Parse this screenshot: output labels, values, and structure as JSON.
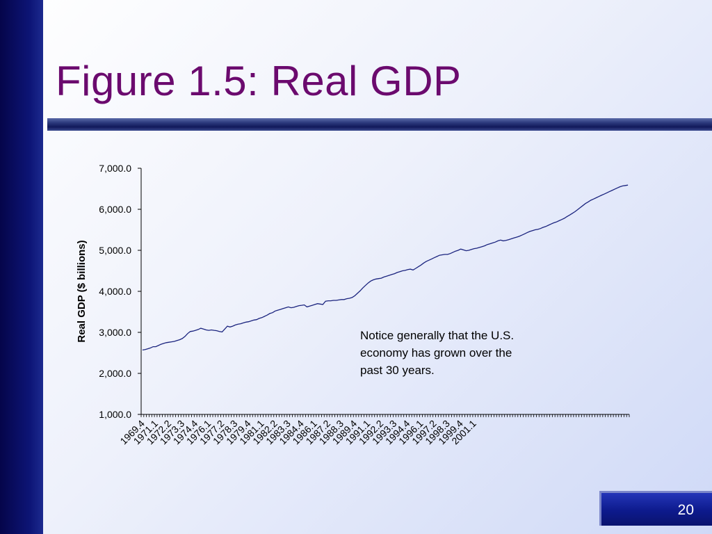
{
  "slide": {
    "title": "Figure 1.5:  Real GDP",
    "annotation": "Notice generally that the U.S. economy has grown over the past 30 years.",
    "page_number": "20"
  },
  "colors": {
    "title": "#6b0a6e",
    "line": "#1a237e",
    "left_bar": "#05054a",
    "page_box": "#0d1a8c"
  },
  "chart_data": {
    "type": "line",
    "title": "",
    "xlabel": "",
    "ylabel": "Real GDP ($ billions)",
    "ylim": [
      1000,
      7000
    ],
    "yticks": [
      1000,
      2000,
      3000,
      4000,
      5000,
      6000,
      7000
    ],
    "ytick_labels": [
      "1,000.0",
      "2,000.0",
      "3,000.0",
      "4,000.0",
      "5,000.0",
      "6,000.0",
      "7,000.0"
    ],
    "xtick_labels": [
      "1969.4",
      "1971.1",
      "1972.2",
      "1973.3",
      "1974.4",
      "1976.1",
      "1977.2",
      "1978.3",
      "1979.4",
      "1981.1",
      "1982.2",
      "1983.3",
      "1984.4",
      "1986.1",
      "1987.2",
      "1988.3",
      "1989.4",
      "1991.1",
      "1992.2",
      "1993.3",
      "1994.4",
      "1996.1",
      "1997.2",
      "1998.3",
      "1999.4",
      "2001.1"
    ],
    "x_start": "1969.4",
    "grid": false,
    "legend": "none",
    "series": [
      {
        "values": [
          2570,
          2580,
          2600,
          2620,
          2650,
          2650,
          2680,
          2710,
          2730,
          2750,
          2760,
          2770,
          2780,
          2800,
          2820,
          2850,
          2900,
          2970,
          3020,
          3030,
          3050,
          3070,
          3100,
          3080,
          3060,
          3050,
          3060,
          3050,
          3040,
          3020,
          3010,
          3080,
          3150,
          3130,
          3150,
          3180,
          3200,
          3210,
          3230,
          3250,
          3260,
          3280,
          3300,
          3310,
          3340,
          3360,
          3390,
          3420,
          3460,
          3480,
          3520,
          3540,
          3560,
          3580,
          3600,
          3620,
          3600,
          3610,
          3630,
          3650,
          3660,
          3670,
          3620,
          3640,
          3660,
          3680,
          3700,
          3690,
          3680,
          3760,
          3770,
          3770,
          3780,
          3780,
          3790,
          3800,
          3800,
          3820,
          3830,
          3850,
          3890,
          3950,
          4010,
          4080,
          4140,
          4200,
          4250,
          4280,
          4300,
          4310,
          4320,
          4350,
          4370,
          4390,
          4410,
          4430,
          4460,
          4480,
          4500,
          4510,
          4530,
          4540,
          4520,
          4560,
          4600,
          4640,
          4690,
          4730,
          4760,
          4790,
          4820,
          4850,
          4880,
          4890,
          4900,
          4900,
          4920,
          4950,
          4980,
          5000,
          5030,
          5010,
          4990,
          5000,
          5020,
          5040,
          5050,
          5070,
          5090,
          5110,
          5140,
          5160,
          5180,
          5200,
          5230,
          5250,
          5230,
          5240,
          5260,
          5280,
          5300,
          5320,
          5340,
          5370,
          5400,
          5430,
          5460,
          5480,
          5500,
          5510,
          5530,
          5560,
          5580,
          5610,
          5640,
          5670,
          5690,
          5720,
          5750,
          5780,
          5820,
          5860,
          5900,
          5940,
          5990,
          6040,
          6090,
          6140,
          6180,
          6220,
          6250,
          6280,
          6310,
          6340,
          6370,
          6400,
          6430,
          6460,
          6490,
          6520,
          6550,
          6570,
          6580,
          6590
        ]
      }
    ]
  }
}
